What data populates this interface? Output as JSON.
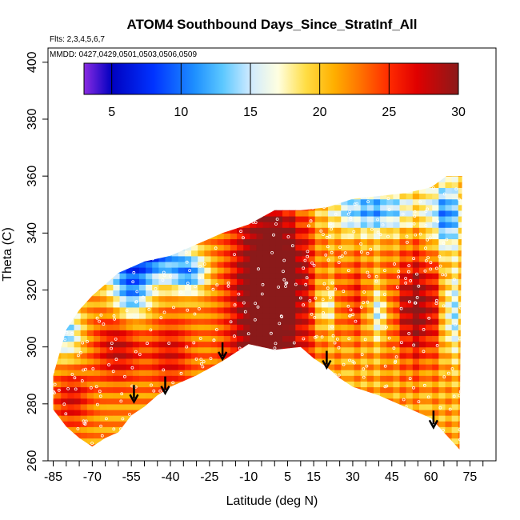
{
  "chart_data": {
    "type": "heatmap",
    "title": "ATOM4 Southbound Days_Since_StratInf_All",
    "flights_label": "Flts: 2,3,4,5,6,7",
    "dates_label": "MMDD: 0427,0429,0501,0503,0506,0509",
    "xlabel": "Latitude (deg N)",
    "ylabel": "Theta (C)",
    "xlim": [
      -87,
      85
    ],
    "ylim": [
      260,
      405
    ],
    "x_ticks": [
      -85,
      -70,
      -55,
      -40,
      -25,
      -10,
      5,
      15,
      30,
      45,
      60,
      75
    ],
    "y_ticks": [
      260,
      280,
      300,
      320,
      340,
      360,
      380,
      400
    ],
    "colorbar": {
      "min": 3,
      "max": 30,
      "ticks": [
        5,
        10,
        15,
        20,
        25,
        30
      ],
      "stops": [
        {
          "v": 3,
          "c": "#8a2be2"
        },
        {
          "v": 5,
          "c": "#0000c0"
        },
        {
          "v": 8,
          "c": "#0033ff"
        },
        {
          "v": 11,
          "c": "#1e90ff"
        },
        {
          "v": 13,
          "c": "#5cc8ff"
        },
        {
          "v": 15,
          "c": "#cfeaff"
        },
        {
          "v": 17,
          "c": "#ffffe0"
        },
        {
          "v": 19,
          "c": "#ffdd44"
        },
        {
          "v": 21,
          "c": "#ffb000"
        },
        {
          "v": 23,
          "c": "#ff7000"
        },
        {
          "v": 25,
          "c": "#ff2a00"
        },
        {
          "v": 27,
          "c": "#e00000"
        },
        {
          "v": 30,
          "c": "#8b1a1a"
        }
      ]
    },
    "domain_top": [
      [
        -85,
        290
      ],
      [
        -80,
        306
      ],
      [
        -75,
        313
      ],
      [
        -70,
        318
      ],
      [
        -60,
        326
      ],
      [
        -50,
        330
      ],
      [
        -40,
        332
      ],
      [
        -30,
        336
      ],
      [
        -20,
        340
      ],
      [
        -10,
        343
      ],
      [
        0,
        348
      ],
      [
        10,
        348
      ],
      [
        20,
        349
      ],
      [
        30,
        352
      ],
      [
        40,
        353
      ],
      [
        50,
        354
      ],
      [
        60,
        356
      ],
      [
        66,
        360
      ],
      [
        72,
        360
      ]
    ],
    "domain_bottom": [
      [
        -85,
        278
      ],
      [
        -80,
        272
      ],
      [
        -75,
        268
      ],
      [
        -70,
        265
      ],
      [
        -65,
        268
      ],
      [
        -60,
        270
      ],
      [
        -55,
        276
      ],
      [
        -50,
        279
      ],
      [
        -45,
        283
      ],
      [
        -40,
        286
      ],
      [
        -30,
        290
      ],
      [
        -20,
        295
      ],
      [
        -10,
        301
      ],
      [
        0,
        299
      ],
      [
        10,
        300
      ],
      [
        15,
        296
      ],
      [
        20,
        293
      ],
      [
        25,
        289
      ],
      [
        30,
        286
      ],
      [
        40,
        283
      ],
      [
        50,
        279
      ],
      [
        60,
        275
      ],
      [
        66,
        269
      ],
      [
        71,
        264
      ]
    ],
    "arrows": [
      {
        "lat": -54,
        "theta": 281
      },
      {
        "lat": -42,
        "theta": 284
      },
      {
        "lat": -20,
        "theta": 296
      },
      {
        "lat": 20,
        "theta": 293
      },
      {
        "lat": 61,
        "theta": 272
      }
    ]
  }
}
